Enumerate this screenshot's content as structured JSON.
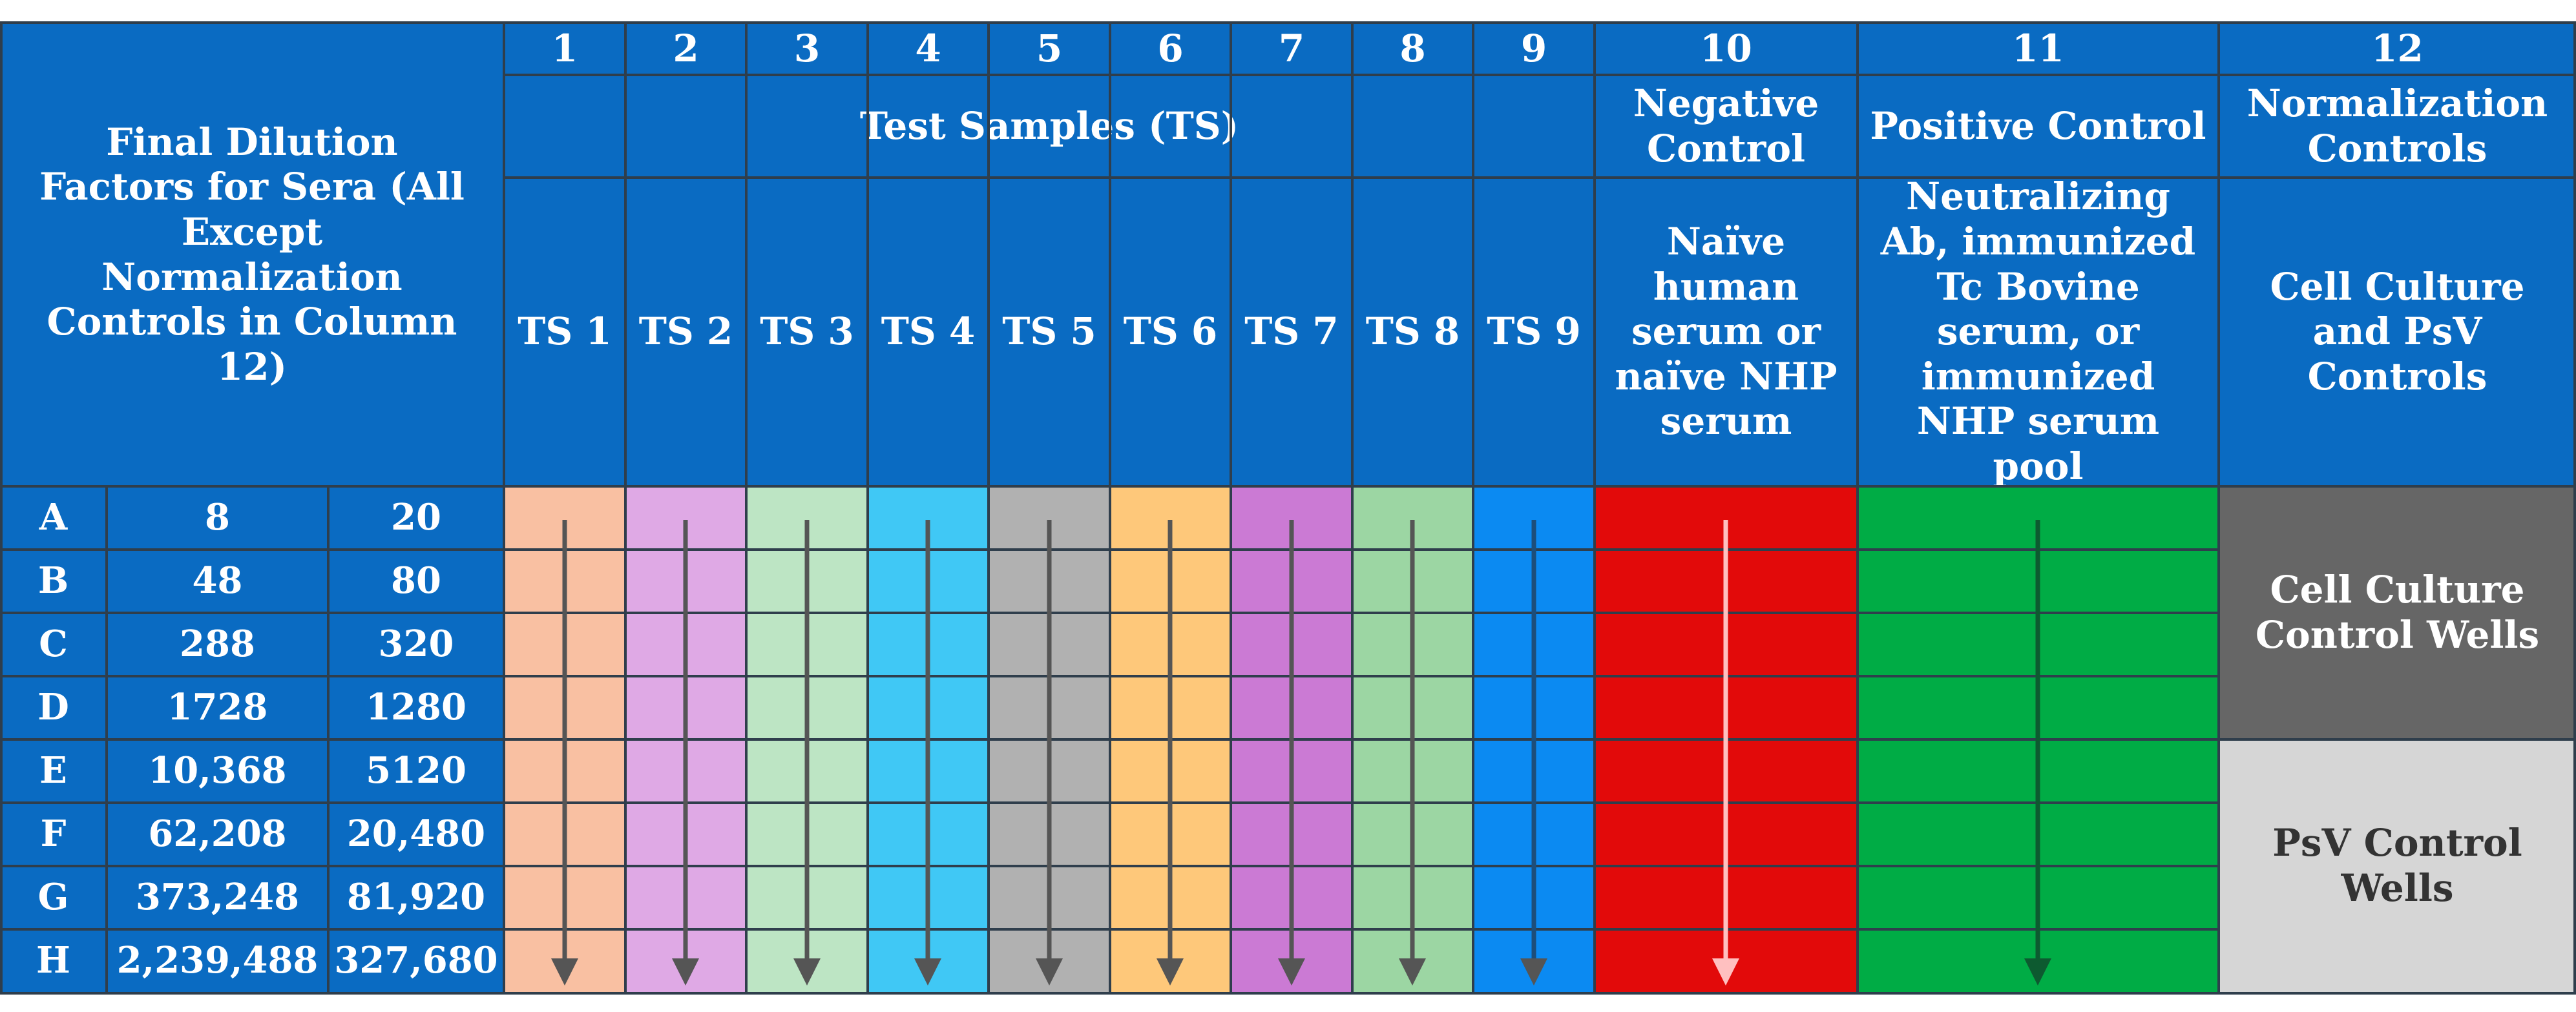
{
  "corner_header": "Final Dilution Factors for Sera (All Except Normalization Controls in Column 12)",
  "columns": [
    "1",
    "2",
    "3",
    "4",
    "5",
    "6",
    "7",
    "8",
    "9",
    "10",
    "11",
    "12"
  ],
  "group_headers": {
    "test_samples": "Test Samples (TS)",
    "negative_control": "Negative Control",
    "positive_control": "Positive Control",
    "normalization_controls": "Normalization Controls"
  },
  "sample_headers": [
    "TS 1",
    "TS 2",
    "TS 3",
    "TS 4",
    "TS 5",
    "TS 6",
    "TS 7",
    "TS 8",
    "TS 9"
  ],
  "sample_descriptions": {
    "negative": "Naïve human serum or naïve NHP serum",
    "positive": "Neutralizing Ab, immunized Tc Bovine serum, or immunized NHP serum pool",
    "normalization": "Cell Culture and PsV Controls"
  },
  "rows": [
    {
      "label": "A",
      "dil1": "8",
      "dil2": "20"
    },
    {
      "label": "B",
      "dil1": "48",
      "dil2": "80"
    },
    {
      "label": "C",
      "dil1": "288",
      "dil2": "320"
    },
    {
      "label": "D",
      "dil1": "1728",
      "dil2": "1280"
    },
    {
      "label": "E",
      "dil1": "10,368",
      "dil2": "5120"
    },
    {
      "label": "F",
      "dil1": "62,208",
      "dil2": "20,480"
    },
    {
      "label": "G",
      "dil1": "373,248",
      "dil2": "81,920"
    },
    {
      "label": "H",
      "dil1": "2,239,488",
      "dil2": "327,680"
    }
  ],
  "control_wells": {
    "cell_culture": "Cell Culture Control Wells",
    "psv": "PsV Control Wells"
  },
  "colors": {
    "header_blue": "#0a6bc2",
    "ts": [
      "#f9c0a2",
      "#dfa9e5",
      "#bde5c4",
      "#40c8f5",
      "#b1b1b1",
      "#fec87a",
      "#cb7ad4",
      "#9cd6a3",
      "#0b8af2"
    ],
    "negative": "#e20a0a",
    "positive": "#00ac45",
    "cell_culture": "#666666",
    "psv": "#d6d6d6"
  }
}
